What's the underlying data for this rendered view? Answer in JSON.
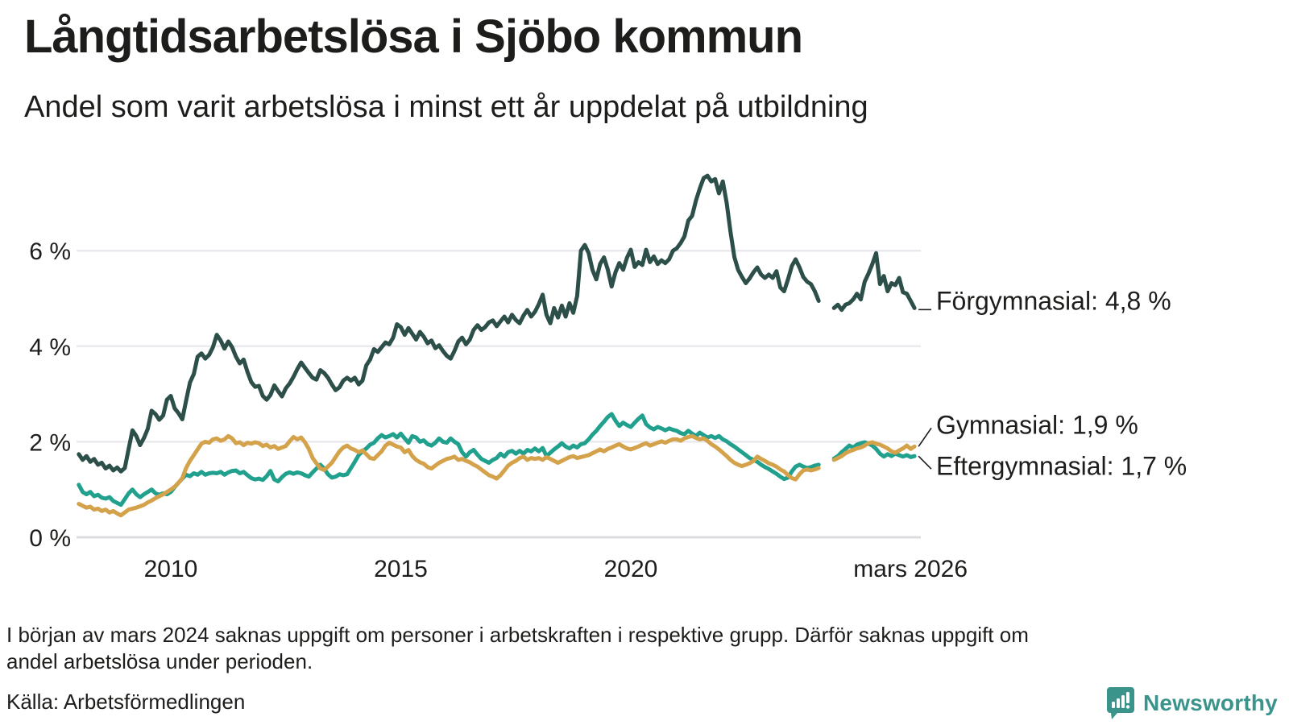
{
  "title": "Långtidsarbetslösa i Sjöbo kommun",
  "subtitle": "Andel som varit arbetslösa i minst ett år uppdelat på utbildning",
  "footnote": {
    "line1": "I början av mars 2024 saknas uppgift om personer i arbetskraften i respektive grupp. Därför saknas uppgift om",
    "line2": "andel arbetslösa under perioden."
  },
  "source": "Källa: Arbetsförmedlingen",
  "logo": {
    "text": "Newsworthy",
    "color": "#3b948b"
  },
  "colors": {
    "forgymnasial": "#2d4f49",
    "gymnasial": "#d4a24a",
    "eftergymnasial": "#21a08e",
    "grid": "#e9e9ee",
    "grid_zero": "#dcdce0",
    "text": "#1d1d1b"
  },
  "chart_data": {
    "type": "line",
    "unit": "%",
    "frequency": "monthly",
    "x_start": "2008-01",
    "x_end": "2026-03",
    "missing_period": {
      "from": "2024-03",
      "to": "2024-05"
    },
    "x_axis": {
      "ticks": [
        {
          "label": "2010",
          "t": 2010.0
        },
        {
          "label": "2015",
          "t": 2015.0
        },
        {
          "label": "2020",
          "t": 2020.0
        },
        {
          "label": "mars 2026",
          "t": 2026.08
        }
      ]
    },
    "y_axis": {
      "ticks": [
        {
          "label": "0 %",
          "value": 0
        },
        {
          "label": "2 %",
          "value": 2
        },
        {
          "label": "4 %",
          "value": 4
        },
        {
          "label": "6 %",
          "value": 6
        }
      ],
      "range": [
        0,
        7.9
      ]
    },
    "series": [
      {
        "name": "Förgymnasial",
        "end_label": "Förgymnasial: 4,8 %",
        "last_value": 4.8,
        "color": "#2d4f49",
        "values": [
          1.74,
          1.62,
          1.7,
          1.58,
          1.64,
          1.52,
          1.56,
          1.44,
          1.5,
          1.4,
          1.46,
          1.38,
          1.45,
          1.85,
          2.24,
          2.12,
          1.93,
          2.08,
          2.27,
          2.65,
          2.58,
          2.46,
          2.55,
          2.88,
          2.96,
          2.7,
          2.6,
          2.47,
          2.86,
          3.24,
          3.42,
          3.78,
          3.85,
          3.74,
          3.82,
          3.98,
          4.24,
          4.12,
          3.95,
          4.1,
          3.98,
          3.78,
          3.64,
          3.72,
          3.46,
          3.25,
          3.15,
          3.17,
          2.96,
          2.88,
          2.98,
          3.18,
          3.06,
          2.95,
          3.12,
          3.22,
          3.36,
          3.52,
          3.66,
          3.55,
          3.44,
          3.34,
          3.3,
          3.5,
          3.44,
          3.34,
          3.2,
          3.08,
          3.14,
          3.28,
          3.34,
          3.28,
          3.34,
          3.2,
          3.28,
          3.6,
          3.72,
          3.94,
          3.88,
          3.98,
          4.08,
          4.04,
          4.18,
          4.46,
          4.4,
          4.24,
          4.38,
          4.26,
          4.14,
          4.3,
          4.2,
          4.06,
          4.12,
          3.96,
          4.02,
          3.9,
          3.8,
          3.74,
          3.9,
          4.1,
          4.18,
          4.04,
          4.14,
          4.34,
          4.44,
          4.34,
          4.4,
          4.5,
          4.54,
          4.42,
          4.52,
          4.62,
          4.5,
          4.66,
          4.55,
          4.48,
          4.64,
          4.76,
          4.62,
          4.72,
          4.88,
          5.08,
          4.66,
          4.48,
          4.8,
          4.6,
          4.85,
          4.62,
          4.9,
          4.7,
          5.05,
          6.0,
          6.12,
          5.95,
          5.6,
          5.4,
          5.72,
          5.86,
          5.6,
          5.25,
          5.55,
          5.74,
          5.6,
          5.85,
          6.02,
          5.66,
          5.76,
          5.7,
          6.02,
          5.76,
          5.88,
          5.72,
          5.8,
          5.74,
          5.82,
          6.0,
          6.05,
          6.16,
          6.3,
          6.63,
          6.73,
          7.05,
          7.3,
          7.52,
          7.57,
          7.45,
          7.5,
          7.2,
          7.45,
          7.0,
          6.4,
          5.87,
          5.6,
          5.45,
          5.32,
          5.42,
          5.55,
          5.65,
          5.5,
          5.43,
          5.5,
          5.43,
          5.57,
          5.23,
          5.15,
          5.4,
          5.68,
          5.82,
          5.65,
          5.45,
          5.35,
          5.3,
          5.15,
          4.95,
          null,
          null,
          null,
          4.8,
          4.87,
          4.76,
          4.87,
          4.9,
          4.98,
          5.1,
          4.98,
          5.35,
          5.52,
          5.72,
          5.95,
          5.3,
          5.47,
          5.15,
          5.32,
          5.28,
          5.43,
          5.13,
          5.1,
          4.95,
          4.8
        ]
      },
      {
        "name": "Gymnasial",
        "end_label": "Gymnasial: 1,9 %",
        "last_value": 1.9,
        "color": "#d4a24a",
        "values": [
          0.7,
          0.66,
          0.62,
          0.64,
          0.58,
          0.6,
          0.55,
          0.58,
          0.52,
          0.55,
          0.5,
          0.46,
          0.52,
          0.58,
          0.6,
          0.62,
          0.65,
          0.68,
          0.73,
          0.77,
          0.82,
          0.86,
          0.9,
          0.95,
          1.0,
          1.06,
          1.14,
          1.24,
          1.45,
          1.6,
          1.72,
          1.84,
          1.96,
          2.0,
          1.98,
          2.05,
          2.07,
          2.02,
          2.05,
          2.12,
          2.07,
          1.97,
          1.99,
          1.93,
          1.98,
          1.96,
          1.99,
          1.97,
          1.91,
          1.94,
          1.88,
          1.91,
          1.85,
          1.88,
          1.91,
          2.01,
          2.1,
          2.05,
          2.09,
          1.99,
          1.85,
          1.66,
          1.55,
          1.44,
          1.41,
          1.48,
          1.56,
          1.68,
          1.8,
          1.88,
          1.92,
          1.86,
          1.83,
          1.78,
          1.82,
          1.74,
          1.66,
          1.64,
          1.72,
          1.8,
          1.92,
          1.98,
          1.94,
          1.9,
          1.88,
          1.78,
          1.83,
          1.7,
          1.62,
          1.57,
          1.54,
          1.47,
          1.44,
          1.5,
          1.56,
          1.6,
          1.64,
          1.66,
          1.69,
          1.62,
          1.64,
          1.6,
          1.57,
          1.52,
          1.48,
          1.42,
          1.36,
          1.3,
          1.27,
          1.23,
          1.3,
          1.4,
          1.5,
          1.56,
          1.6,
          1.66,
          1.69,
          1.62,
          1.66,
          1.64,
          1.66,
          1.62,
          1.68,
          1.64,
          1.6,
          1.56,
          1.6,
          1.64,
          1.68,
          1.7,
          1.66,
          1.68,
          1.7,
          1.72,
          1.76,
          1.8,
          1.84,
          1.8,
          1.85,
          1.88,
          1.92,
          1.95,
          1.9,
          1.86,
          1.84,
          1.87,
          1.9,
          1.94,
          1.97,
          1.92,
          1.95,
          1.98,
          2.01,
          1.98,
          2.02,
          2.05,
          2.05,
          2.02,
          2.07,
          2.1,
          2.12,
          2.08,
          2.05,
          2.07,
          2.02,
          1.95,
          1.9,
          1.84,
          1.77,
          1.7,
          1.62,
          1.56,
          1.52,
          1.49,
          1.52,
          1.55,
          1.6,
          1.69,
          1.64,
          1.6,
          1.55,
          1.52,
          1.48,
          1.42,
          1.38,
          1.3,
          1.24,
          1.21,
          1.32,
          1.4,
          1.42,
          1.4,
          1.42,
          1.45,
          null,
          null,
          null,
          1.62,
          1.66,
          1.7,
          1.76,
          1.8,
          1.83,
          1.86,
          1.88,
          1.92,
          1.97,
          1.99,
          1.96,
          1.94,
          1.9,
          1.86,
          1.8,
          1.77,
          1.82,
          1.86,
          1.92,
          1.85,
          1.9
        ]
      },
      {
        "name": "Eftergymnasial",
        "end_label": "Eftergymnasial: 1,7 %",
        "last_value": 1.7,
        "color": "#21a08e",
        "values": [
          1.1,
          0.95,
          0.9,
          0.95,
          0.86,
          0.89,
          0.83,
          0.81,
          0.84,
          0.76,
          0.72,
          0.68,
          0.8,
          0.92,
          1.0,
          0.9,
          0.84,
          0.9,
          0.95,
          1.0,
          0.92,
          0.89,
          0.92,
          0.9,
          0.95,
          1.05,
          1.14,
          1.23,
          1.31,
          1.28,
          1.34,
          1.31,
          1.37,
          1.31,
          1.34,
          1.35,
          1.34,
          1.37,
          1.31,
          1.36,
          1.39,
          1.4,
          1.34,
          1.37,
          1.3,
          1.24,
          1.21,
          1.23,
          1.2,
          1.28,
          1.39,
          1.21,
          1.17,
          1.26,
          1.33,
          1.36,
          1.33,
          1.36,
          1.34,
          1.3,
          1.27,
          1.36,
          1.44,
          1.52,
          1.44,
          1.32,
          1.25,
          1.27,
          1.32,
          1.3,
          1.32,
          1.45,
          1.58,
          1.72,
          1.8,
          1.86,
          1.94,
          1.98,
          2.07,
          2.14,
          2.09,
          2.12,
          2.16,
          2.09,
          2.17,
          2.07,
          1.98,
          2.12,
          2.09,
          2.0,
          2.03,
          1.95,
          1.92,
          1.98,
          2.07,
          2.0,
          1.98,
          2.07,
          2.0,
          1.95,
          1.78,
          1.69,
          1.78,
          1.83,
          1.73,
          1.64,
          1.6,
          1.56,
          1.62,
          1.66,
          1.75,
          1.69,
          1.78,
          1.81,
          1.75,
          1.81,
          1.75,
          1.83,
          1.8,
          1.86,
          1.8,
          1.87,
          1.7,
          1.77,
          1.84,
          1.9,
          1.97,
          1.9,
          1.86,
          1.92,
          1.88,
          1.95,
          1.97,
          2.05,
          2.15,
          2.23,
          2.33,
          2.42,
          2.52,
          2.58,
          2.44,
          2.33,
          2.4,
          2.35,
          2.31,
          2.4,
          2.48,
          2.55,
          2.37,
          2.3,
          2.26,
          2.31,
          2.28,
          2.24,
          2.28,
          2.25,
          2.23,
          2.18,
          2.16,
          2.23,
          2.17,
          2.12,
          2.19,
          2.14,
          2.09,
          2.12,
          2.08,
          2.12,
          2.05,
          2.01,
          1.95,
          1.9,
          1.84,
          1.78,
          1.72,
          1.66,
          1.62,
          1.58,
          1.52,
          1.47,
          1.43,
          1.38,
          1.33,
          1.27,
          1.22,
          1.25,
          1.38,
          1.48,
          1.52,
          1.48,
          1.45,
          1.47,
          1.5,
          1.52,
          null,
          null,
          null,
          1.65,
          1.7,
          1.78,
          1.85,
          1.92,
          1.88,
          1.94,
          1.97,
          1.99,
          1.96,
          1.92,
          1.85,
          1.75,
          1.69,
          1.74,
          1.7,
          1.75,
          1.72,
          1.69,
          1.72,
          1.68,
          1.7
        ]
      }
    ]
  }
}
